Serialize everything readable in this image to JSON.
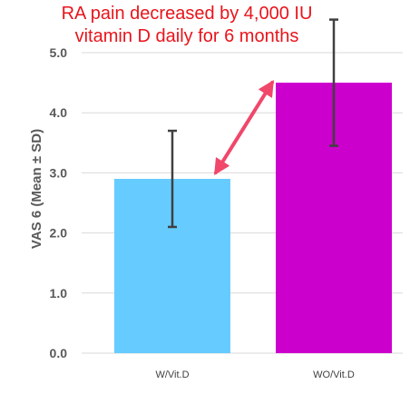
{
  "chart_data": {
    "type": "bar",
    "categories": [
      "W/Vit.D",
      "WO/Vit.D"
    ],
    "values": [
      2.9,
      4.5
    ],
    "errors": [
      0.8,
      1.05
    ],
    "colors": [
      "#66ccff",
      "#cc00cc"
    ],
    "error_bar_color": "#404040",
    "ylabel": "VAS 6  (Mean ± SD)",
    "ylim": [
      0,
      5
    ],
    "yticks": [
      0,
      1,
      2,
      3,
      4,
      5
    ],
    "ytick_labels": [
      "0.0",
      "1.0",
      "2.0",
      "3.0",
      "4.0",
      "5.0"
    ],
    "grid": true,
    "grid_color": "#d9d9d9",
    "annotation": {
      "lines": [
        "RA pain decreased by 4,000 IU",
        "vitamin D daily for 6 months"
      ],
      "color": "#e8141b",
      "arrow_color": "#f0476a",
      "arrow": "double-headed, pointing from the W/Vit.D bar top to the WO/Vit.D bar top"
    }
  }
}
